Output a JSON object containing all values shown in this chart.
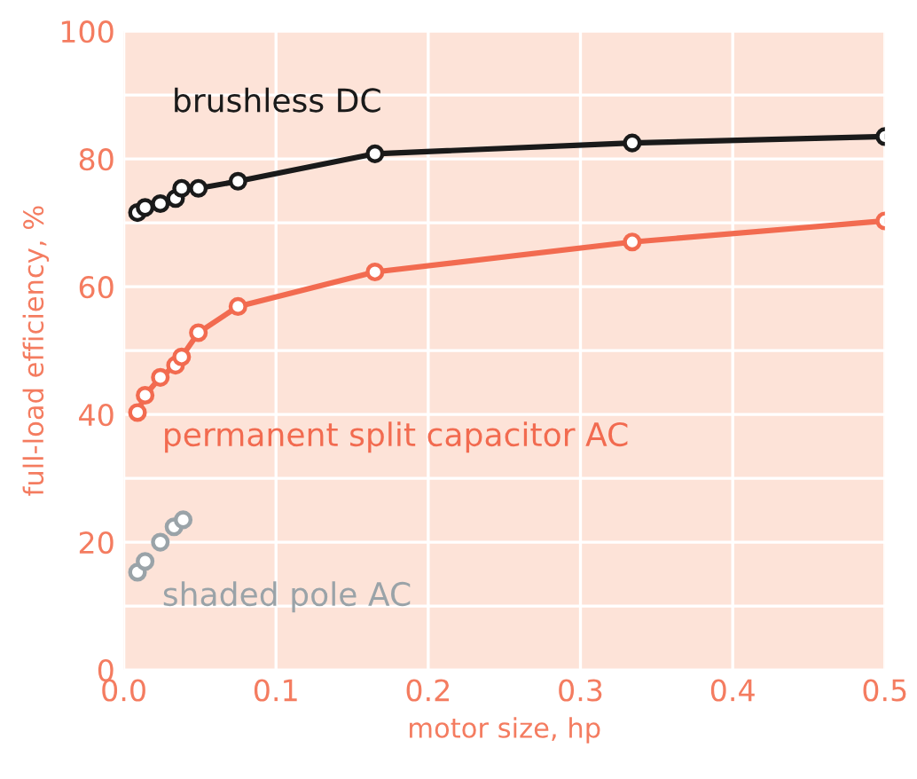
{
  "chart_data": {
    "type": "line",
    "xlabel": "motor size, hp",
    "ylabel": "full-load efficiency, %",
    "xlim": [
      0,
      0.5
    ],
    "xticks": [
      {
        "value": 0,
        "label": "0.0"
      },
      0.1,
      0.2,
      0.3,
      0.4,
      0.5
    ],
    "ylim": [
      0,
      100
    ],
    "yticks": [
      0,
      {
        "value": 10,
        "label": null
      },
      20,
      {
        "value": 30,
        "label": null
      },
      40,
      {
        "value": 50,
        "label": null
      },
      60,
      {
        "value": 70,
        "label": null
      },
      80,
      {
        "value": 90,
        "label": null
      },
      100
    ],
    "grid": true,
    "marker": "circle",
    "line_style": "solid",
    "series": [
      {
        "name": "brushless DC",
        "color": "#1a1a1a",
        "x": [
          0.009,
          0.014,
          0.024,
          0.034,
          0.038,
          0.049,
          0.075,
          0.165,
          0.334,
          0.5
        ],
        "values": [
          71.6,
          72.4,
          73,
          73.8,
          75.4,
          75.4,
          76.5,
          80.8,
          82.5,
          83.5
        ]
      },
      {
        "name": "permanent split capacitor AC",
        "color": "#f26b50",
        "x": [
          0.009,
          0.014,
          0.024,
          0.034,
          0.038,
          0.049,
          0.075,
          0.165,
          0.334,
          0.5
        ],
        "values": [
          40.3,
          43,
          45.8,
          47.7,
          49,
          52.8,
          56.9,
          62.3,
          67,
          70.3
        ]
      },
      {
        "name": "shaded pole AC",
        "type": "scatter",
        "color": "#9aa3a8",
        "x": [
          0.009,
          0.014,
          0.024,
          0.033,
          0.039
        ],
        "values": [
          15.3,
          17,
          20,
          22.4,
          23.5
        ]
      }
    ]
  }
}
